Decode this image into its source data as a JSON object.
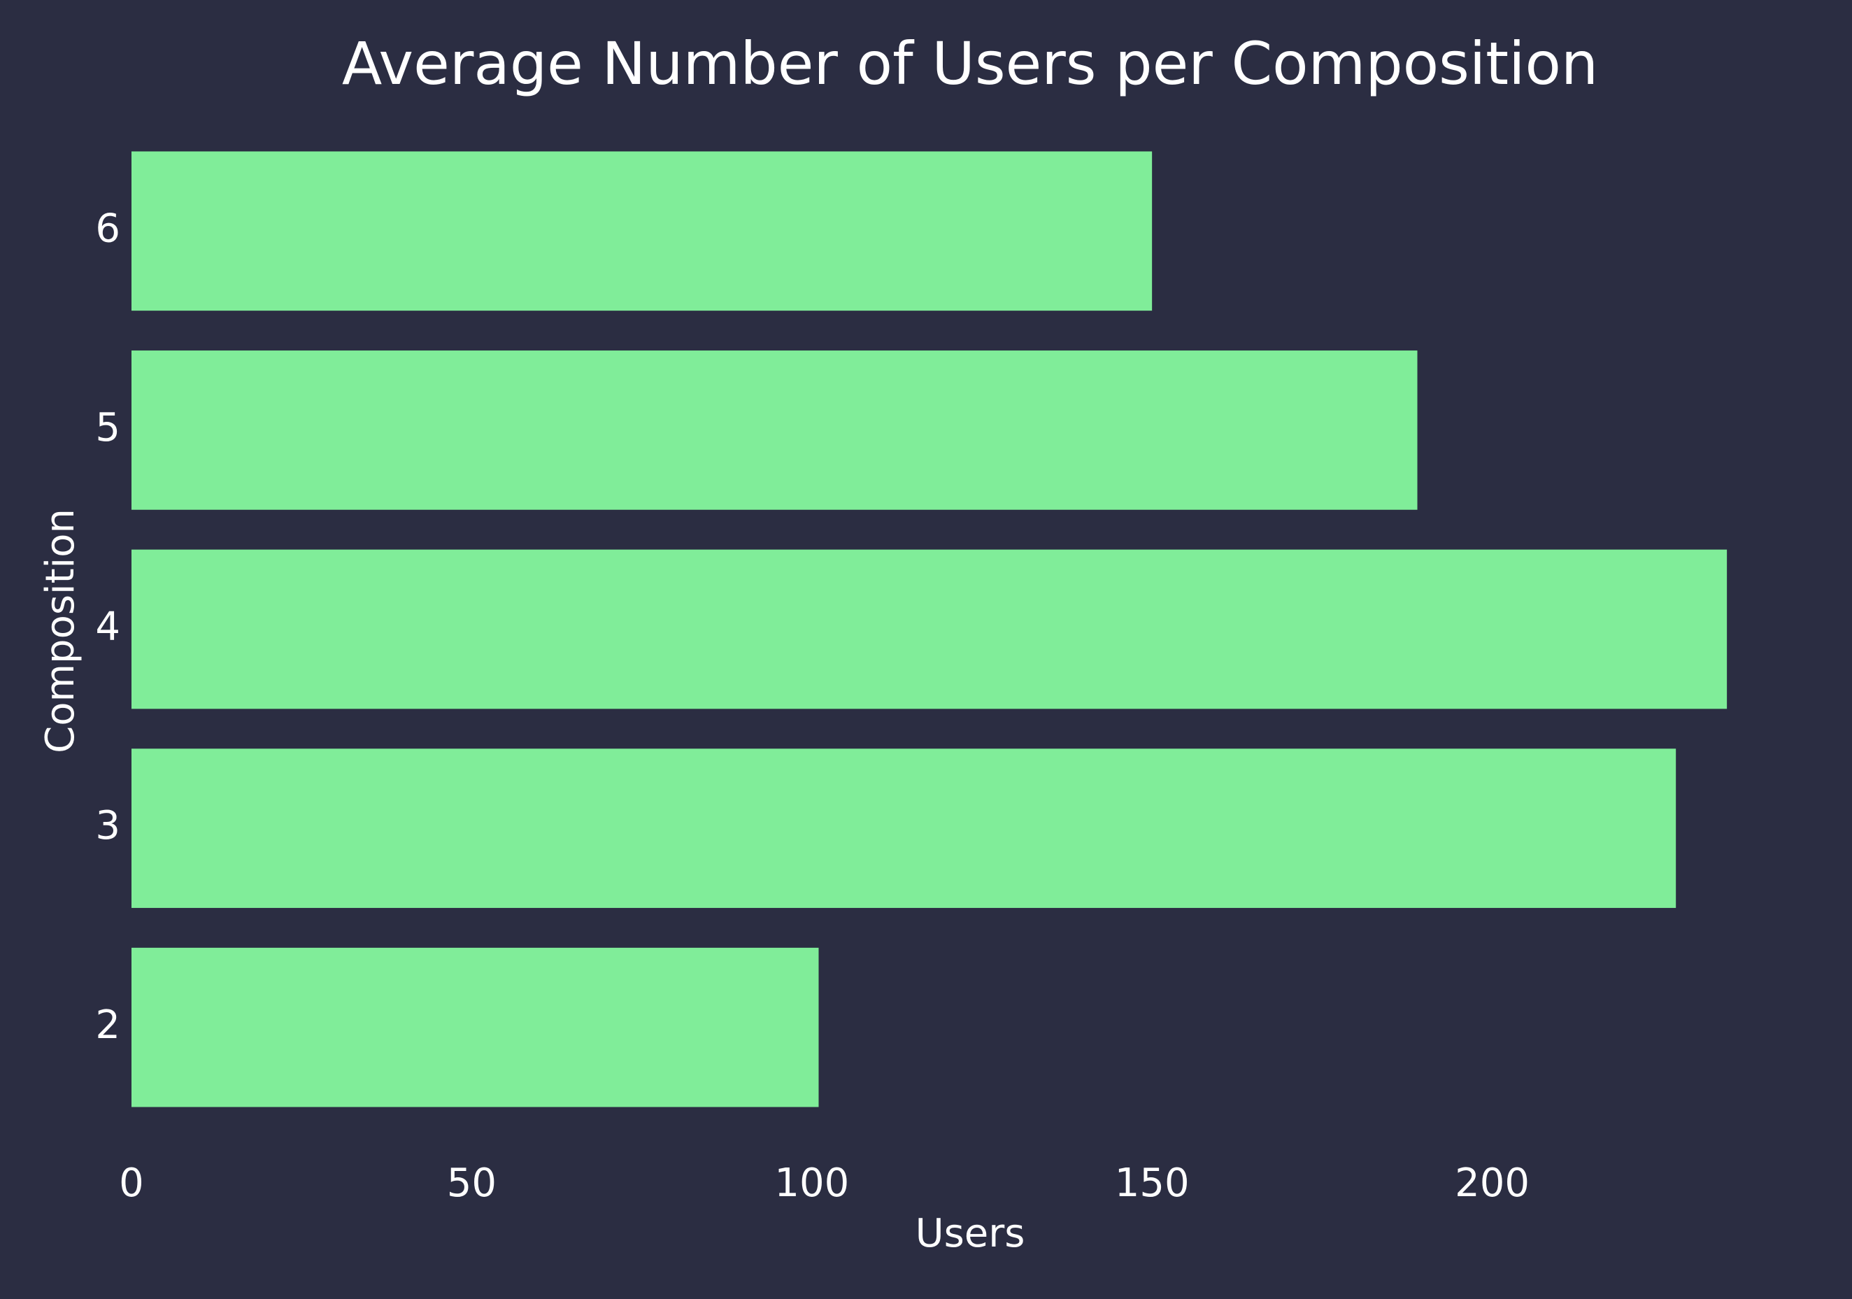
{
  "chart_data": {
    "type": "bar",
    "orientation": "horizontal",
    "title": "Average Number of Users per Composition",
    "xlabel": "Users",
    "ylabel": "Composition",
    "categories": [
      "2",
      "3",
      "4",
      "5",
      "6"
    ],
    "values": [
      101,
      227,
      234.5,
      189,
      150
    ],
    "xlim": [
      0,
      235
    ],
    "xticks": [
      0,
      50,
      100,
      150,
      200
    ],
    "grid": false,
    "legend": "none",
    "colors": {
      "background": "#2b2d42",
      "bar": "#80ed99",
      "text": "#ffffff"
    }
  }
}
